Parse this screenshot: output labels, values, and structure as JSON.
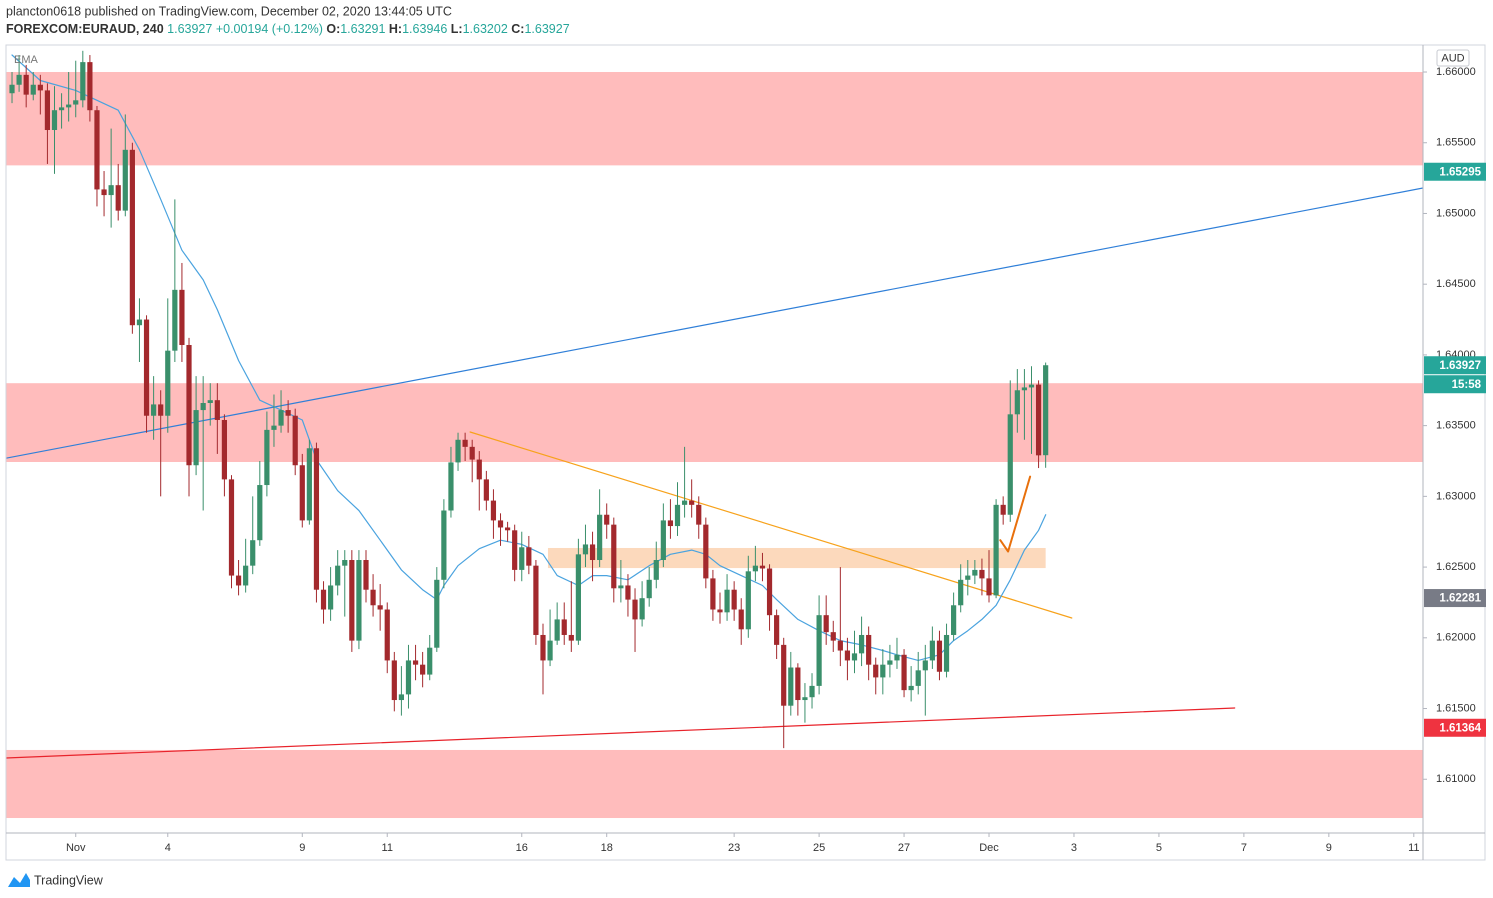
{
  "header": {
    "publisher": "plancton0618 published on TradingView.com, December 02, 2020 13:44:05 UTC",
    "symbol": "FOREXCOM:EURAUD, 240",
    "change": "+0.00194 (+0.12%)",
    "ohlc_labels": [
      "O:",
      "H:",
      "L:",
      "C:"
    ]
  },
  "footer": {
    "brand": "TradingView"
  },
  "chart_data": {
    "type": "candlestick",
    "currency": "AUD",
    "indicator": "EMA",
    "up_color": "#3a8f6b",
    "down_color": "#a3292d",
    "xlim": [
      -0.85,
      199.3
    ],
    "ylim": [
      1.6062,
      1.66191
    ],
    "xticks": [
      {
        "value": 9,
        "label": "Nov"
      },
      {
        "value": 22,
        "label": "4"
      },
      {
        "value": 41,
        "label": "9"
      },
      {
        "value": 53,
        "label": "11"
      },
      {
        "value": 72,
        "label": "16"
      },
      {
        "value": 84,
        "label": "18"
      },
      {
        "value": 102,
        "label": "23"
      },
      {
        "value": 114,
        "label": "25"
      },
      {
        "value": 126,
        "label": "27"
      },
      {
        "value": 138,
        "label": "Dec"
      },
      {
        "value": 150,
        "label": "3"
      },
      {
        "value": 162,
        "label": "5"
      },
      {
        "value": 174,
        "label": "7"
      },
      {
        "value": 186,
        "label": "9"
      },
      {
        "value": 198,
        "label": "11"
      }
    ],
    "yticks": [
      {
        "value": 1.61,
        "label": "1.61000"
      },
      {
        "value": 1.615,
        "label": "1.61500"
      },
      {
        "value": 1.62,
        "label": "1.62000"
      },
      {
        "value": 1.625,
        "label": "1.62500"
      },
      {
        "value": 1.63,
        "label": "1.63000"
      },
      {
        "value": 1.635,
        "label": "1.63500"
      },
      {
        "value": 1.64,
        "label": "1.64000"
      },
      {
        "value": 1.645,
        "label": "1.64500"
      },
      {
        "value": 1.65,
        "label": "1.65000"
      },
      {
        "value": 1.655,
        "label": "1.65500"
      },
      {
        "value": 1.66,
        "label": "1.66000"
      }
    ],
    "zones": [
      {
        "from": 1.6534,
        "to": 1.66,
        "color": "#ffbcbc"
      },
      {
        "from": 1.63243,
        "to": 1.638,
        "color": "#ffbcbc"
      },
      {
        "from": 1.60726,
        "to": 1.61207,
        "color": "#ffbcbc"
      },
      {
        "from": 1.62493,
        "to": 1.62635,
        "x": [
          75.7,
          146
        ],
        "color": "#fcd9bc"
      }
    ],
    "lines": [
      {
        "x": [
          -0.85,
          199.3
        ],
        "values": [
          1.6327,
          1.6518
        ],
        "color": "#2f7fd8"
      },
      {
        "x": [
          64.7,
          149.7
        ],
        "values": [
          1.63455,
          1.6214
        ],
        "color": "#f7a21b"
      },
      {
        "x": [
          -0.85,
          172.7
        ],
        "values": [
          1.6115,
          1.61504
        ],
        "color": "#e8232b"
      }
    ],
    "brush": {
      "x": [
        139.6,
        140.7,
        142.4,
        143.8
      ],
      "values": [
        1.6269,
        1.6261,
        1.629,
        1.6314
      ],
      "color": "#e8700c"
    },
    "ema": {
      "color": "#4aa3df",
      "x": [
        0,
        4,
        9,
        12,
        15,
        18,
        21,
        24,
        27,
        29,
        32,
        35,
        38,
        41,
        43,
        46,
        49,
        52,
        55,
        58,
        60,
        61,
        63,
        66,
        69,
        72,
        75,
        77,
        80,
        82,
        84,
        87,
        90,
        93,
        96,
        98,
        100,
        103,
        106,
        108,
        111,
        114,
        117,
        120,
        123,
        125,
        128,
        131,
        133,
        135,
        137,
        139,
        141,
        143,
        145,
        146
      ],
      "values": [
        1.6612,
        1.6594,
        1.6587,
        1.658,
        1.6573,
        1.6545,
        1.651,
        1.6474,
        1.6453,
        1.6432,
        1.6396,
        1.6368,
        1.6361,
        1.6354,
        1.6326,
        1.6304,
        1.629,
        1.6269,
        1.6248,
        1.6234,
        1.6227,
        1.6237,
        1.6251,
        1.6263,
        1.6269,
        1.6266,
        1.6259,
        1.6244,
        1.6237,
        1.6244,
        1.6244,
        1.6241,
        1.6251,
        1.6259,
        1.6262,
        1.6259,
        1.6251,
        1.6244,
        1.6237,
        1.6227,
        1.6213,
        1.6205,
        1.6198,
        1.6195,
        1.6191,
        1.6188,
        1.6184,
        1.6188,
        1.6198,
        1.6205,
        1.6213,
        1.6223,
        1.6241,
        1.6262,
        1.6276,
        1.6287
      ]
    },
    "price_tags": [
      {
        "value": 1.65295,
        "color": "#26a69a"
      },
      {
        "value": 1.62281,
        "color": "#787b86"
      },
      {
        "value": 1.61364,
        "color": "#ef3340"
      }
    ],
    "last_color": "#26a69a",
    "countdown": "15:58",
    "ohlc": [
      [
        1.6585,
        1.66,
        1.6578,
        1.6591
      ],
      [
        1.6591,
        1.6612,
        1.6586,
        1.6598
      ],
      [
        1.6598,
        1.6605,
        1.6575,
        1.6584
      ],
      [
        1.6584,
        1.66,
        1.658,
        1.6591
      ],
      [
        1.6591,
        1.6598,
        1.657,
        1.6587
      ],
      [
        1.6587,
        1.6592,
        1.6535,
        1.6559
      ],
      [
        1.6559,
        1.659,
        1.6528,
        1.6573
      ],
      [
        1.6573,
        1.6585,
        1.656,
        1.6575
      ],
      [
        1.6575,
        1.66,
        1.6565,
        1.6577
      ],
      [
        1.6577,
        1.6608,
        1.6568,
        1.658
      ],
      [
        1.658,
        1.6615,
        1.6575,
        1.6607
      ],
      [
        1.6607,
        1.6612,
        1.6565,
        1.6573
      ],
      [
        1.6573,
        1.6576,
        1.6505,
        1.6517
      ],
      [
        1.6517,
        1.653,
        1.6498,
        1.6513
      ],
      [
        1.6513,
        1.656,
        1.649,
        1.652
      ],
      [
        1.652,
        1.6535,
        1.6495,
        1.6502
      ],
      [
        1.6502,
        1.657,
        1.6498,
        1.6545
      ],
      [
        1.6545,
        1.655,
        1.6415,
        1.6421
      ],
      [
        1.6421,
        1.644,
        1.6395,
        1.6425
      ],
      [
        1.6425,
        1.6428,
        1.6345,
        1.6357
      ],
      [
        1.6357,
        1.6385,
        1.634,
        1.6365
      ],
      [
        1.6365,
        1.6375,
        1.63,
        1.6357
      ],
      [
        1.6357,
        1.644,
        1.6345,
        1.6403
      ],
      [
        1.6403,
        1.651,
        1.6395,
        1.6446
      ],
      [
        1.6446,
        1.6465,
        1.6395,
        1.6407
      ],
      [
        1.6407,
        1.6412,
        1.63,
        1.6322
      ],
      [
        1.6322,
        1.6385,
        1.6315,
        1.6361
      ],
      [
        1.6361,
        1.6385,
        1.629,
        1.6366
      ],
      [
        1.6366,
        1.638,
        1.635,
        1.6368
      ],
      [
        1.6368,
        1.638,
        1.633,
        1.6354
      ],
      [
        1.6354,
        1.6358,
        1.63,
        1.6312
      ],
      [
        1.6312,
        1.6315,
        1.6235,
        1.6244
      ],
      [
        1.6244,
        1.6255,
        1.623,
        1.6237
      ],
      [
        1.6237,
        1.627,
        1.6232,
        1.6251
      ],
      [
        1.6251,
        1.63,
        1.6245,
        1.6269
      ],
      [
        1.6269,
        1.6325,
        1.6265,
        1.6308
      ],
      [
        1.6308,
        1.636,
        1.63,
        1.6347
      ],
      [
        1.6347,
        1.6372,
        1.6335,
        1.635
      ],
      [
        1.635,
        1.6375,
        1.6345,
        1.6361
      ],
      [
        1.6361,
        1.6368,
        1.6345,
        1.6357
      ],
      [
        1.6357,
        1.6362,
        1.6315,
        1.6322
      ],
      [
        1.6322,
        1.633,
        1.6278,
        1.6283
      ],
      [
        1.6283,
        1.634,
        1.628,
        1.6334
      ],
      [
        1.6334,
        1.6338,
        1.6225,
        1.6234
      ],
      [
        1.6234,
        1.624,
        1.621,
        1.622
      ],
      [
        1.622,
        1.625,
        1.6212,
        1.6237
      ],
      [
        1.6237,
        1.6262,
        1.623,
        1.6251
      ],
      [
        1.6251,
        1.6262,
        1.6215,
        1.6255
      ],
      [
        1.6255,
        1.6262,
        1.619,
        1.6198
      ],
      [
        1.6198,
        1.6262,
        1.6192,
        1.6255
      ],
      [
        1.6255,
        1.6262,
        1.6225,
        1.6234
      ],
      [
        1.6234,
        1.6245,
        1.6215,
        1.6223
      ],
      [
        1.6223,
        1.6238,
        1.6205,
        1.622
      ],
      [
        1.622,
        1.6225,
        1.6175,
        1.6184
      ],
      [
        1.6184,
        1.619,
        1.6148,
        1.6156
      ],
      [
        1.6156,
        1.618,
        1.6145,
        1.616
      ],
      [
        1.616,
        1.6195,
        1.615,
        1.6184
      ],
      [
        1.6184,
        1.6195,
        1.617,
        1.6181
      ],
      [
        1.6181,
        1.619,
        1.6165,
        1.6174
      ],
      [
        1.6174,
        1.6202,
        1.617,
        1.6193
      ],
      [
        1.6193,
        1.625,
        1.619,
        1.6241
      ],
      [
        1.6241,
        1.6298,
        1.6235,
        1.629
      ],
      [
        1.629,
        1.6335,
        1.6285,
        1.6324
      ],
      [
        1.6324,
        1.6345,
        1.6318,
        1.634
      ],
      [
        1.634,
        1.6345,
        1.6325,
        1.6335
      ],
      [
        1.6335,
        1.634,
        1.631,
        1.6326
      ],
      [
        1.6326,
        1.6332,
        1.629,
        1.6312
      ],
      [
        1.6312,
        1.6318,
        1.629,
        1.6297
      ],
      [
        1.6297,
        1.6305,
        1.627,
        1.6283
      ],
      [
        1.6283,
        1.6288,
        1.6265,
        1.6278
      ],
      [
        1.6278,
        1.6282,
        1.6268,
        1.6276
      ],
      [
        1.6276,
        1.628,
        1.624,
        1.6248
      ],
      [
        1.6248,
        1.6275,
        1.624,
        1.6264
      ],
      [
        1.6264,
        1.6272,
        1.6245,
        1.6251
      ],
      [
        1.6251,
        1.6255,
        1.6195,
        1.6202
      ],
      [
        1.6202,
        1.621,
        1.616,
        1.6184
      ],
      [
        1.6184,
        1.622,
        1.618,
        1.6198
      ],
      [
        1.6198,
        1.6225,
        1.6195,
        1.6213
      ],
      [
        1.6213,
        1.6225,
        1.6195,
        1.6202
      ],
      [
        1.6202,
        1.624,
        1.619,
        1.6198
      ],
      [
        1.6198,
        1.627,
        1.6195,
        1.6259
      ],
      [
        1.6259,
        1.628,
        1.625,
        1.6266
      ],
      [
        1.6266,
        1.6275,
        1.624,
        1.6255
      ],
      [
        1.6255,
        1.6305,
        1.625,
        1.6287
      ],
      [
        1.6287,
        1.6295,
        1.627,
        1.628
      ],
      [
        1.628,
        1.6285,
        1.6225,
        1.6235
      ],
      [
        1.6235,
        1.6255,
        1.6225,
        1.6237
      ],
      [
        1.6237,
        1.6245,
        1.6215,
        1.6227
      ],
      [
        1.6227,
        1.6235,
        1.619,
        1.6213
      ],
      [
        1.6213,
        1.624,
        1.6208,
        1.6228
      ],
      [
        1.6228,
        1.625,
        1.6222,
        1.6241
      ],
      [
        1.6241,
        1.6268,
        1.6235,
        1.6255
      ],
      [
        1.6255,
        1.6295,
        1.625,
        1.6283
      ],
      [
        1.6283,
        1.6298,
        1.627,
        1.6279
      ],
      [
        1.6279,
        1.631,
        1.6272,
        1.6294
      ],
      [
        1.6294,
        1.6335,
        1.6285,
        1.6297
      ],
      [
        1.6297,
        1.6312,
        1.6285,
        1.6294
      ],
      [
        1.6294,
        1.63,
        1.627,
        1.628
      ],
      [
        1.628,
        1.6285,
        1.6235,
        1.6242
      ],
      [
        1.6242,
        1.6248,
        1.6212,
        1.622
      ],
      [
        1.622,
        1.6232,
        1.621,
        1.6218
      ],
      [
        1.6218,
        1.6245,
        1.6212,
        1.6234
      ],
      [
        1.6234,
        1.624,
        1.6212,
        1.622
      ],
      [
        1.622,
        1.6228,
        1.6195,
        1.6206
      ],
      [
        1.6206,
        1.6258,
        1.62,
        1.6247
      ],
      [
        1.6247,
        1.6265,
        1.624,
        1.6251
      ],
      [
        1.6251,
        1.626,
        1.624,
        1.6249
      ],
      [
        1.6249,
        1.6252,
        1.6205,
        1.6216
      ],
      [
        1.6216,
        1.622,
        1.6185,
        1.6195
      ],
      [
        1.6195,
        1.62,
        1.6122,
        1.6152
      ],
      [
        1.6152,
        1.619,
        1.6145,
        1.6179
      ],
      [
        1.6179,
        1.6182,
        1.6145,
        1.6156
      ],
      [
        1.6156,
        1.6168,
        1.614,
        1.6158
      ],
      [
        1.6158,
        1.6175,
        1.615,
        1.6166
      ],
      [
        1.6166,
        1.623,
        1.616,
        1.6216
      ],
      [
        1.6216,
        1.623,
        1.6195,
        1.6204
      ],
      [
        1.6204,
        1.6212,
        1.619,
        1.6198
      ],
      [
        1.6198,
        1.625,
        1.618,
        1.6191
      ],
      [
        1.6191,
        1.62,
        1.617,
        1.6184
      ],
      [
        1.6184,
        1.6205,
        1.6175,
        1.6189
      ],
      [
        1.6189,
        1.6215,
        1.618,
        1.6202
      ],
      [
        1.6202,
        1.6208,
        1.617,
        1.6181
      ],
      [
        1.6181,
        1.6186,
        1.616,
        1.6172
      ],
      [
        1.6172,
        1.6192,
        1.616,
        1.6181
      ],
      [
        1.6181,
        1.6195,
        1.6172,
        1.6184
      ],
      [
        1.6184,
        1.62,
        1.6178,
        1.6188
      ],
      [
        1.6188,
        1.6192,
        1.6158,
        1.6163
      ],
      [
        1.6163,
        1.618,
        1.6155,
        1.6166
      ],
      [
        1.6166,
        1.619,
        1.616,
        1.6177
      ],
      [
        1.6177,
        1.6195,
        1.6145,
        1.6184
      ],
      [
        1.6184,
        1.6208,
        1.6178,
        1.6198
      ],
      [
        1.6198,
        1.6205,
        1.617,
        1.6176
      ],
      [
        1.6176,
        1.621,
        1.6172,
        1.6202
      ],
      [
        1.6202,
        1.6232,
        1.6198,
        1.6223
      ],
      [
        1.6223,
        1.6252,
        1.6218,
        1.6241
      ],
      [
        1.6241,
        1.6255,
        1.623,
        1.6244
      ],
      [
        1.6244,
        1.6255,
        1.6238,
        1.6248
      ],
      [
        1.6248,
        1.6256,
        1.623,
        1.6242
      ],
      [
        1.6242,
        1.6262,
        1.6225,
        1.623
      ],
      [
        1.623,
        1.6298,
        1.6228,
        1.6294
      ],
      [
        1.6294,
        1.63,
        1.628,
        1.6287
      ],
      [
        1.6287,
        1.6382,
        1.6282,
        1.6358
      ],
      [
        1.6358,
        1.639,
        1.6345,
        1.6375
      ],
      [
        1.6375,
        1.639,
        1.634,
        1.6377
      ],
      [
        1.6377,
        1.6392,
        1.633,
        1.6379
      ],
      [
        1.6379,
        1.6382,
        1.632,
        1.6329
      ],
      [
        1.63291,
        1.63946,
        1.63202,
        1.63927
      ]
    ]
  }
}
